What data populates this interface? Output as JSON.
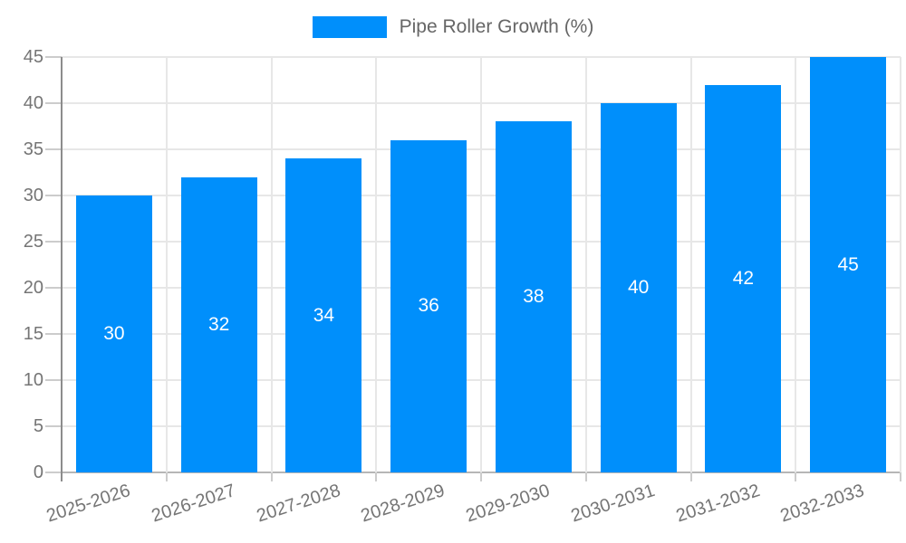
{
  "legend": {
    "label": "Pipe Roller Growth (%)"
  },
  "colors": {
    "bar": "#008FFB",
    "bar_label": "#ffffff",
    "grid": "#e7e7e7",
    "baseline": "#b6b6b6",
    "tick": "#cccccc",
    "axis": "#8c8c8c",
    "axis_label_text": "#757575",
    "legend_text": "#666666"
  },
  "chart_data": {
    "type": "bar",
    "title": "Pipe Roller Growth (%)",
    "categories": [
      "2025-2026",
      "2026-2027",
      "2027-2028",
      "2028-2029",
      "2029-2030",
      "2030-2031",
      "2031-2032",
      "2032-2033"
    ],
    "values": [
      30,
      32,
      34,
      36,
      38,
      40,
      42,
      45
    ],
    "series": [
      {
        "name": "Pipe Roller Growth (%)",
        "values": [
          30,
          32,
          34,
          36,
          38,
          40,
          42,
          45
        ]
      }
    ],
    "xlabel": "",
    "ylabel": "",
    "ylim": [
      0,
      45
    ],
    "yticks": [
      0,
      5,
      10,
      15,
      20,
      25,
      30,
      35,
      40,
      45
    ],
    "grid": true,
    "legend_position": "top",
    "bar_value_labels": "inside-center"
  }
}
